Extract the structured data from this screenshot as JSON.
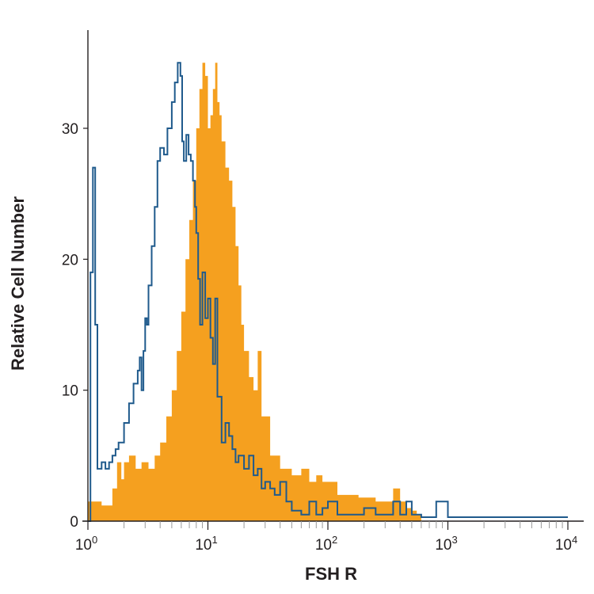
{
  "chart_data": {
    "type": "area",
    "title": "",
    "xlabel": "FSH R",
    "ylabel": "Relative Cell Number",
    "x_scale": "log",
    "xlim": [
      1,
      10000
    ],
    "ylim": [
      0,
      36
    ],
    "grid": false,
    "legend": "none",
    "x_ticks": [
      {
        "value": 1,
        "base": "10",
        "exp": "0"
      },
      {
        "value": 10,
        "base": "10",
        "exp": "1"
      },
      {
        "value": 100,
        "base": "10",
        "exp": "2"
      },
      {
        "value": 1000,
        "base": "10",
        "exp": "3"
      },
      {
        "value": 10000,
        "base": "10",
        "exp": "4"
      }
    ],
    "y_ticks": [
      0,
      10,
      20,
      30
    ],
    "series": [
      {
        "style": "filled",
        "color": "#f5a01f",
        "x": [
          1,
          1.3,
          1.6,
          1.75,
          1.9,
          2.0,
          2.2,
          2.5,
          2.8,
          3.2,
          3.6,
          4.0,
          4.5,
          5.0,
          5.5,
          6.0,
          6.5,
          7.0,
          7.5,
          8.0,
          8.5,
          9.0,
          9.5,
          10.0,
          10.5,
          11.0,
          11.5,
          12.0,
          12.5,
          13.0,
          14.0,
          15.0,
          16.0,
          17.0,
          18.0,
          19.0,
          20.0,
          22.0,
          24.0,
          26.0,
          28.0,
          30.0,
          33.0,
          36.0,
          40.0,
          45.0,
          50.0,
          55.0,
          60.0,
          70.0,
          80.0,
          90.0,
          100,
          120,
          150,
          180,
          200,
          250,
          300,
          350,
          400,
          450,
          500,
          550,
          600
        ],
        "y": [
          1.5,
          1.2,
          2.5,
          4.5,
          3.2,
          4.5,
          5.0,
          4.0,
          4.5,
          4.0,
          5.0,
          6.0,
          8.0,
          10.0,
          13.0,
          16.0,
          20.0,
          23.0,
          26.0,
          30.0,
          33.0,
          35.0,
          34.0,
          30.0,
          31.0,
          33.0,
          35.0,
          32.0,
          31.0,
          29.0,
          27.0,
          26.0,
          24.0,
          21.0,
          18.0,
          15.0,
          13.0,
          11.0,
          10.0,
          13.0,
          8.0,
          8.0,
          5.0,
          5.0,
          4.0,
          4.0,
          3.5,
          3.5,
          4.0,
          3.0,
          3.5,
          3.0,
          3.0,
          2.0,
          2.0,
          1.8,
          1.8,
          1.5,
          1.5,
          2.5,
          1.5,
          1.0,
          0.8,
          0.5,
          0
        ]
      },
      {
        "style": "line",
        "color": "#1f5a8c",
        "x": [
          1.0,
          1.05,
          1.1,
          1.15,
          1.2,
          1.3,
          1.4,
          1.5,
          1.6,
          1.7,
          1.8,
          2.0,
          2.2,
          2.4,
          2.6,
          2.7,
          2.8,
          2.9,
          3.0,
          3.1,
          3.2,
          3.4,
          3.6,
          3.8,
          4.0,
          4.3,
          4.6,
          5.0,
          5.3,
          5.6,
          5.9,
          6.1,
          6.3,
          6.6,
          6.9,
          7.2,
          7.5,
          7.8,
          8.0,
          8.3,
          8.6,
          9.0,
          9.5,
          10.0,
          10.5,
          11.0,
          11.5,
          12.0,
          13.0,
          14.0,
          15.0,
          16.0,
          17.0,
          18.0,
          20.0,
          22.0,
          24.0,
          26.0,
          28.0,
          30.0,
          33.0,
          36.0,
          40.0,
          45.0,
          50.0,
          60.0,
          70.0,
          80.0,
          90.0,
          100,
          120,
          150,
          200,
          250,
          300,
          350,
          400,
          450,
          500,
          600,
          700,
          800,
          900,
          1000,
          1500,
          2000,
          3000,
          5000,
          10000
        ],
        "y": [
          0,
          19.0,
          27.0,
          15.0,
          4.0,
          4.5,
          4.0,
          4.5,
          5.0,
          5.5,
          6.0,
          7.5,
          9.0,
          10.5,
          11.5,
          12.5,
          10.0,
          13.0,
          15.5,
          15.0,
          18.0,
          21.0,
          24.0,
          27.5,
          28.5,
          28.0,
          30.0,
          32.0,
          33.5,
          35.0,
          34.0,
          29.0,
          27.5,
          29.5,
          28.0,
          27.5,
          26.0,
          24.0,
          22.0,
          18.5,
          15.0,
          19.0,
          15.5,
          17.0,
          14.0,
          12.0,
          17.0,
          9.5,
          6.0,
          7.5,
          6.5,
          5.5,
          4.5,
          5.0,
          4.0,
          5.0,
          3.5,
          4.0,
          2.5,
          3.0,
          2.5,
          2.0,
          3.0,
          1.5,
          0.8,
          0.5,
          1.5,
          0.5,
          1.0,
          1.5,
          0.5,
          0.5,
          1.0,
          0.5,
          0.5,
          1.5,
          0.5,
          1.5,
          0.5,
          0.3,
          0.3,
          1.5,
          1.5,
          0.3,
          0.3,
          0.3,
          0.3,
          0.3,
          0.3
        ]
      }
    ]
  }
}
